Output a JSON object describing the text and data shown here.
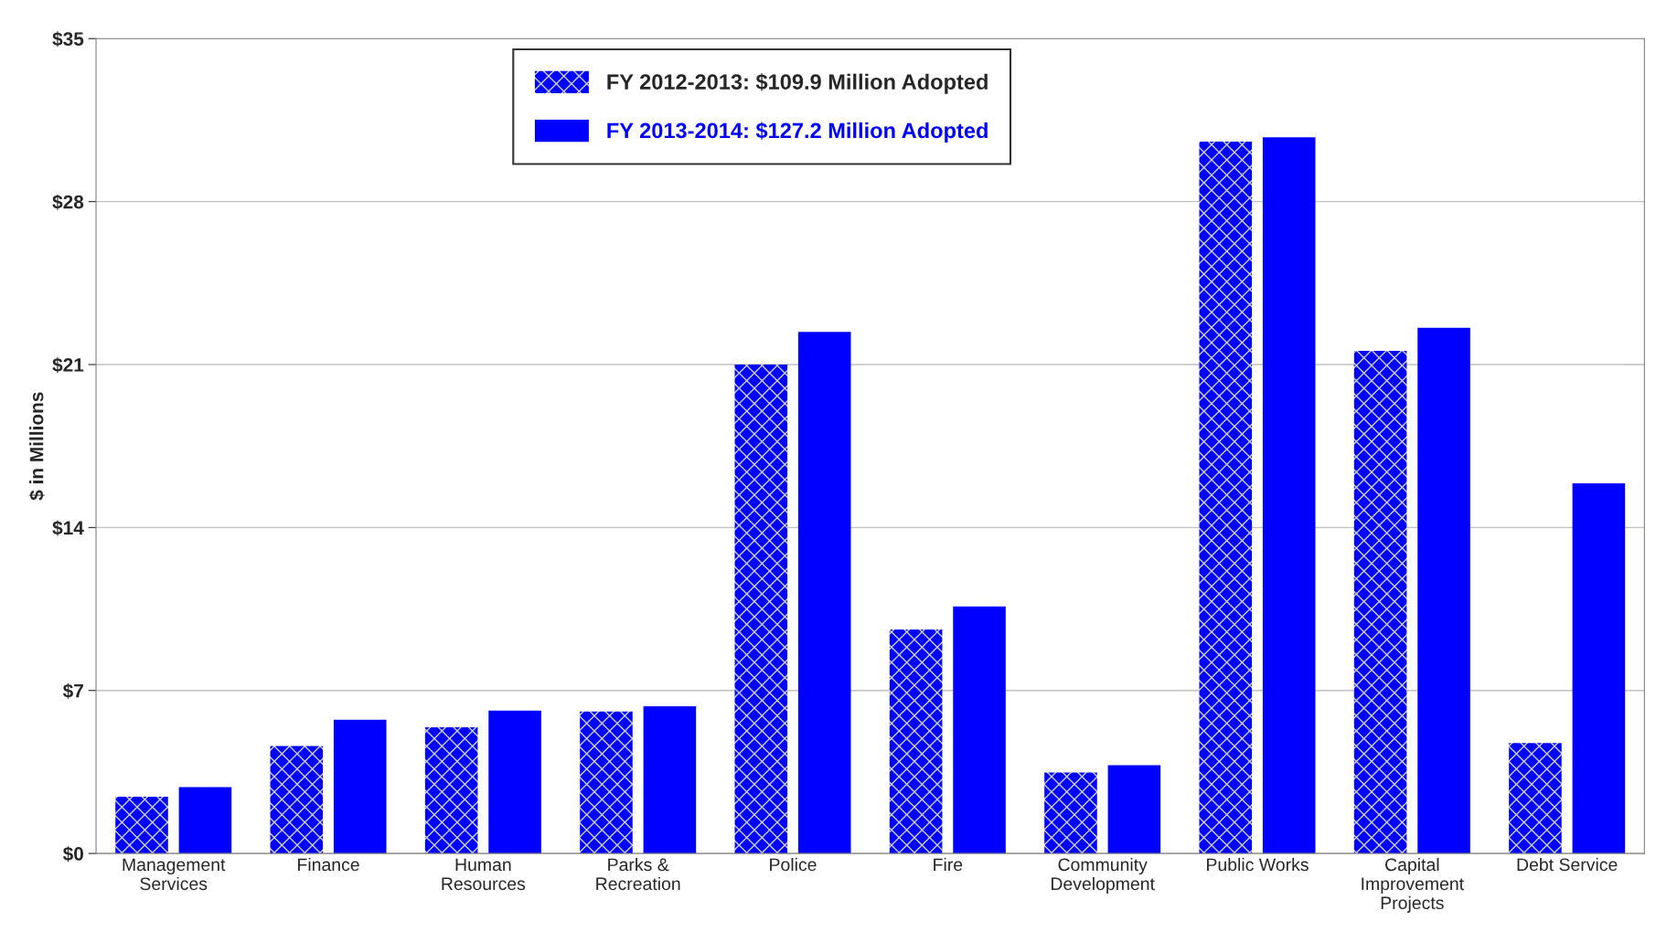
{
  "chart_data": {
    "type": "bar",
    "ylabel": "$ in Millions",
    "categories": [
      "Management\nServices",
      "Finance",
      "Human\nResources",
      "Parks &\nRecreation",
      "Police",
      "Fire",
      "Community\nDevelopment",
      "Public Works",
      "Capital\nImprovement\nProjects",
      "Debt Service"
    ],
    "series": [
      {
        "name": "FY 2012-2013: $109.9 Million Adopted",
        "color": "#0000ff",
        "values": [
          2.44,
          4.61,
          5.42,
          6.1,
          21.0,
          9.62,
          3.48,
          30.58,
          21.59,
          4.74
        ]
      },
      {
        "name": "FY 2013-2014: $127.2 Million Adopted",
        "color": "#0000ff",
        "values": [
          2.85,
          5.74,
          6.14,
          6.32,
          22.4,
          10.61,
          3.79,
          30.76,
          22.58,
          15.9
        ]
      }
    ],
    "ylim": [
      0,
      35
    ],
    "yticks": [
      {
        "value": 0,
        "label": "$0"
      },
      {
        "value": 7,
        "label": "$7"
      },
      {
        "value": 14,
        "label": "$14"
      },
      {
        "value": 21,
        "label": "$21"
      },
      {
        "value": 28,
        "label": "$28"
      },
      {
        "value": 35,
        "label": "$35"
      }
    ],
    "grid": "y",
    "legend": "top"
  }
}
